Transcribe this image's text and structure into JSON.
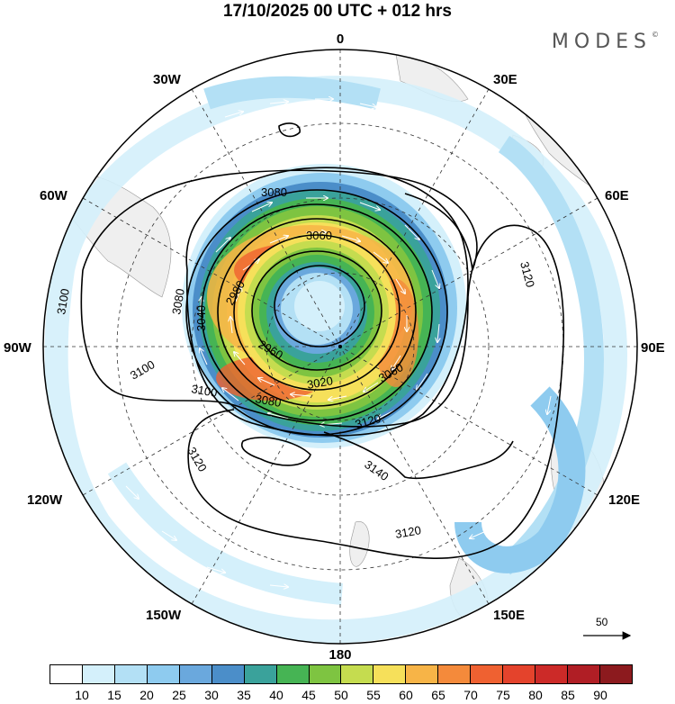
{
  "header": {
    "title": "17/10/2025  00 UTC  + 012 hrs",
    "logo": "MODES",
    "logo_mark": "©"
  },
  "map": {
    "projection": "south-polar-stereographic",
    "longitude_labels": {
      "top": "0",
      "bottom": "180",
      "left": "90W",
      "right": "90E",
      "lon_30w": "30W",
      "lon_30e": "30E",
      "lon_60w": "60W",
      "lon_60e": "60E",
      "lon_120w": "120W",
      "lon_120e": "120E",
      "lon_150w": "150W",
      "lon_150e": "150E"
    },
    "contour_labels": [
      "3080",
      "3060",
      "2980",
      "2960",
      "3040",
      "3080",
      "3100",
      "3100",
      "3100",
      "3080",
      "3020",
      "3060",
      "3120",
      "3120",
      "3140",
      "3120",
      "3120"
    ],
    "wind_reference": {
      "value": "50",
      "unit_arrow": "→"
    }
  },
  "colorbar": {
    "colors": [
      "#ffffff",
      "#d4f0fb",
      "#b3e0f5",
      "#8ecbef",
      "#6aa8dd",
      "#4b8ec9",
      "#3aa29b",
      "#46b454",
      "#7ec441",
      "#c5dc4f",
      "#f6e05a",
      "#f7b447",
      "#f48a3b",
      "#ef6131",
      "#e4432c",
      "#cc2a28",
      "#b01e25",
      "#8c1a1e"
    ],
    "labels": [
      "10",
      "15",
      "20",
      "25",
      "30",
      "35",
      "40",
      "45",
      "50",
      "55",
      "60",
      "65",
      "70",
      "75",
      "80",
      "85",
      "90"
    ]
  }
}
